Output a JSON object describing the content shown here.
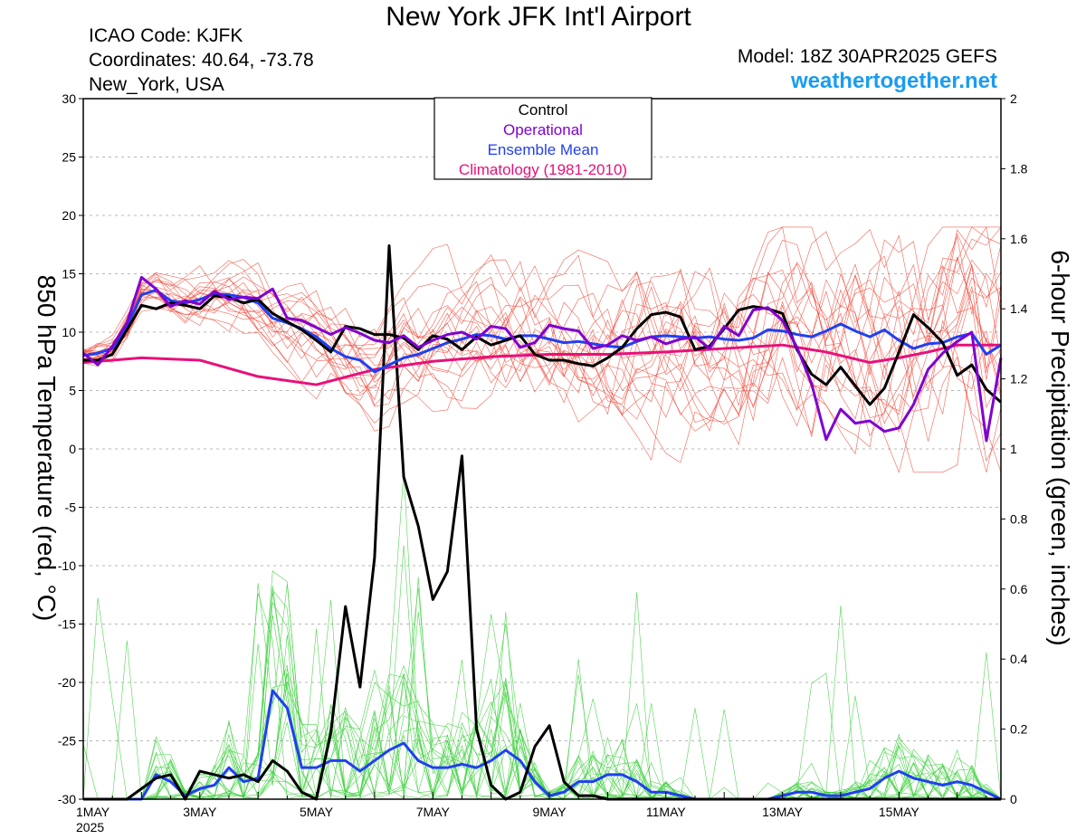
{
  "header": {
    "title": "New York JFK Int'l Airport",
    "icao": "ICAO Code: KJFK",
    "coordinates": "Coordinates: 40.64, -73.78",
    "location": "New_York, USA",
    "model": "Model: 18Z 30APR2025 GEFS",
    "site": "weathertogether.net"
  },
  "chart_data": {
    "type": "line",
    "ylabel_left": "850 hPa Temperature (red, °C)",
    "ylabel_right": "6-hour Precipitation (green, inches)",
    "xaxis": {
      "range_days": [
        0,
        15.75
      ],
      "ticks": [
        {
          "day": 0,
          "label": "1MAY",
          "sub": "2025"
        },
        {
          "day": 2,
          "label": "3MAY"
        },
        {
          "day": 4,
          "label": "5MAY"
        },
        {
          "day": 6,
          "label": "7MAY"
        },
        {
          "day": 8,
          "label": "9MAY"
        },
        {
          "day": 10,
          "label": "11MAY"
        },
        {
          "day": 12,
          "label": "13MAY"
        },
        {
          "day": 14,
          "label": "15MAY"
        }
      ]
    },
    "yaxis_left": {
      "range": [
        -30,
        30
      ],
      "ticks": [
        -30,
        -25,
        -20,
        -15,
        -10,
        -5,
        0,
        5,
        10,
        15,
        20,
        25,
        30
      ],
      "grid": true
    },
    "yaxis_right": {
      "range": [
        0,
        2
      ],
      "ticks": [
        "0",
        "0.2",
        "0.4",
        "0.6",
        "0.8",
        "1",
        "1.2",
        "1.4",
        "1.6",
        "1.8",
        "2"
      ]
    },
    "legend": {
      "placement": "top-center",
      "entries": [
        {
          "label": "Control",
          "color": "#000000"
        },
        {
          "label": "Operational",
          "color": "#8000d0"
        },
        {
          "label": "Ensemble Mean",
          "color": "#2040f0"
        },
        {
          "label": "Climatology (1981-2010)",
          "color": "#e8107a"
        }
      ]
    },
    "colors": {
      "temp_members": "#f04838",
      "precip_members": "#40d040",
      "control": "#000000",
      "operational": "#8000d0",
      "ensemble_mean": "#2040f0",
      "climatology": "#e8107a"
    },
    "series": {
      "climatology_temp": {
        "x": [
          0,
          1,
          2,
          3,
          4,
          5,
          6,
          7,
          8,
          9,
          10,
          11,
          12,
          12.75,
          13.5,
          14,
          14.5,
          15,
          15.75
        ],
        "y": [
          7.4,
          7.8,
          7.6,
          6.2,
          5.5,
          6.8,
          7.5,
          7.9,
          8.1,
          8.1,
          8.3,
          8.6,
          8.9,
          8.3,
          7.4,
          7.8,
          8.3,
          8.9,
          8.9
        ]
      },
      "ensemble_mean_temp": {
        "x": [
          0,
          0.25,
          0.5,
          0.75,
          1,
          1.25,
          1.5,
          1.75,
          2,
          2.25,
          2.5,
          2.75,
          3,
          3.25,
          3.5,
          3.75,
          4,
          4.25,
          4.5,
          4.75,
          5,
          5.25,
          5.5,
          5.75,
          6,
          6.25,
          6.5,
          6.75,
          7,
          7.25,
          7.5,
          7.75,
          8,
          8.25,
          8.5,
          8.75,
          9,
          9.25,
          9.5,
          9.75,
          10,
          10.25,
          10.5,
          10.75,
          11,
          11.25,
          11.5,
          11.75,
          12,
          12.25,
          12.5,
          12.75,
          13,
          13.25,
          13.5,
          13.75,
          14,
          14.25,
          14.5,
          14.75,
          15,
          15.25,
          15.5,
          15.75
        ],
        "y": [
          8,
          8.2,
          8.6,
          10.5,
          13.2,
          13.6,
          12.7,
          12.5,
          12.8,
          13.3,
          13.2,
          13,
          12.5,
          11.2,
          10.8,
          10.3,
          9.6,
          8.6,
          7.9,
          7.6,
          6.6,
          7.2,
          7.8,
          8.1,
          8.6,
          9.1,
          9.4,
          9.8,
          9.7,
          9.4,
          9.7,
          9.7,
          9.4,
          9.1,
          9.2,
          9.0,
          8.8,
          8.7,
          9.2,
          9.6,
          9.7,
          9.6,
          9.5,
          9.6,
          9.4,
          9.3,
          9.5,
          10.2,
          10.1,
          9.8,
          9.6,
          10.1,
          10.7,
          10.1,
          9.6,
          10.2,
          9.3,
          8.6,
          9.0,
          9.1,
          9.6,
          9.9,
          8.1,
          8.9
        ]
      },
      "control_temp": {
        "x": [
          0,
          0.25,
          0.5,
          0.75,
          1,
          1.25,
          1.5,
          1.75,
          2,
          2.25,
          2.5,
          2.75,
          3,
          3.25,
          3.5,
          3.75,
          4,
          4.25,
          4.5,
          4.75,
          5,
          5.25,
          5.5,
          5.75,
          6,
          6.25,
          6.5,
          6.75,
          7,
          7.25,
          7.5,
          7.75,
          8,
          8.25,
          8.5,
          8.75,
          9,
          9.25,
          9.5,
          9.75,
          10,
          10.25,
          10.5,
          10.75,
          11,
          11.25,
          11.5,
          11.75,
          12,
          12.25,
          12.5,
          12.75,
          13,
          13.25,
          13.5,
          13.75,
          14,
          14.25,
          14.5,
          14.75,
          15,
          15.25,
          15.5,
          15.75
        ],
        "y": [
          7.6,
          7.6,
          8.1,
          10.2,
          12.3,
          12.0,
          12.5,
          12.3,
          12.0,
          13.1,
          13.0,
          12.5,
          12.8,
          11.6,
          10.9,
          10.2,
          9.3,
          8.3,
          10.5,
          10.3,
          9.8,
          9.8,
          9.5,
          8.5,
          9.7,
          9.4,
          8.5,
          9.6,
          8.9,
          9.3,
          9.7,
          8.1,
          7.6,
          7.6,
          7.3,
          7.1,
          7.8,
          8.7,
          10.3,
          11.5,
          11.7,
          11.3,
          8.5,
          8.8,
          10.3,
          11.9,
          12.2,
          12.0,
          11.6,
          8.5,
          6.4,
          5.5,
          7.0,
          5.4,
          3.8,
          5.2,
          8.3,
          11.5,
          10.4,
          9.1,
          6.3,
          7.2,
          5.1,
          4.0
        ]
      },
      "operational_temp": {
        "x": [
          0,
          0.25,
          0.5,
          0.75,
          1,
          1.25,
          1.5,
          1.75,
          2,
          2.25,
          2.5,
          2.75,
          3,
          3.25,
          3.5,
          3.75,
          4,
          4.25,
          4.5,
          4.75,
          5,
          5.25,
          5.5,
          5.75,
          6,
          6.25,
          6.5,
          6.75,
          7,
          7.25,
          7.5,
          7.75,
          8,
          8.25,
          8.5,
          8.75,
          9,
          9.25,
          9.5,
          9.75,
          10,
          10.25,
          10.5,
          10.75,
          11,
          11.25,
          11.5,
          11.75,
          12,
          12.25,
          12.5,
          12.75,
          13,
          13.25,
          13.5,
          13.75,
          14,
          14.25,
          14.5,
          14.75,
          15,
          15.25,
          15.5,
          15.75
        ],
        "y": [
          8.2,
          7.2,
          8.8,
          10.8,
          14.7,
          13.7,
          12.2,
          12.7,
          12.4,
          13.5,
          12.8,
          13.0,
          12.9,
          13.7,
          11.2,
          11.0,
          10.4,
          9.8,
          10.4,
          9.9,
          9.3,
          9.1,
          9.7,
          8.7,
          9.3,
          9.8,
          10.0,
          9.4,
          10.5,
          10.3,
          8.7,
          9.1,
          10.6,
          10.3,
          10.1,
          8.6,
          8.9,
          9.7,
          9.3,
          9.6,
          9.0,
          9.4,
          9.6,
          8.6,
          10.5,
          9.7,
          11.9,
          12.1,
          11.0,
          8.7,
          5.6,
          0.8,
          3.4,
          2.2,
          2.4,
          1.5,
          1.8,
          3.8,
          6.8,
          8.2,
          9.2,
          10.0,
          0.7,
          7.8
        ]
      },
      "ensemble_mean_precip": {
        "x": [
          0,
          0.25,
          0.5,
          0.75,
          1,
          1.25,
          1.5,
          1.75,
          2,
          2.25,
          2.5,
          2.75,
          3,
          3.25,
          3.5,
          3.75,
          4,
          4.25,
          4.5,
          4.75,
          5,
          5.25,
          5.5,
          5.75,
          6,
          6.25,
          6.5,
          6.75,
          7,
          7.25,
          7.5,
          7.75,
          8,
          8.25,
          8.5,
          8.75,
          9,
          9.25,
          9.5,
          9.75,
          10,
          10.25,
          10.5,
          10.75,
          11,
          11.25,
          11.5,
          11.75,
          12,
          12.25,
          12.5,
          12.75,
          13,
          13.25,
          13.5,
          13.75,
          14,
          14.25,
          14.5,
          14.75,
          15,
          15.25,
          15.5,
          15.75
        ],
        "y": [
          0,
          0,
          0,
          0,
          0,
          0.07,
          0.05,
          0.01,
          0.03,
          0.04,
          0.09,
          0.05,
          0.06,
          0.31,
          0.26,
          0.09,
          0.09,
          0.11,
          0.11,
          0.08,
          0.11,
          0.14,
          0.16,
          0.11,
          0.09,
          0.09,
          0.1,
          0.09,
          0.11,
          0.14,
          0.11,
          0.05,
          0.01,
          0.02,
          0.05,
          0.05,
          0.07,
          0.07,
          0.05,
          0.02,
          0.02,
          0.01,
          0,
          0,
          0,
          0,
          0,
          0,
          0.01,
          0.02,
          0.02,
          0.01,
          0.01,
          0.02,
          0.03,
          0.06,
          0.08,
          0.06,
          0.05,
          0.04,
          0.05,
          0.04,
          0.02,
          0
        ]
      },
      "control_precip": {
        "x": [
          0,
          0.25,
          0.5,
          0.75,
          1,
          1.25,
          1.5,
          1.75,
          2,
          2.25,
          2.5,
          2.75,
          3,
          3.25,
          3.5,
          3.75,
          4,
          4.25,
          4.5,
          4.75,
          5,
          5.25,
          5.5,
          5.75,
          6,
          6.25,
          6.5,
          6.75,
          7,
          7.25,
          7.5,
          7.75,
          8,
          8.25,
          8.5,
          8.75,
          9,
          9.25,
          9.5,
          9.75,
          10,
          10.25,
          10.5,
          10.75,
          11,
          11.25,
          11.5,
          11.75,
          12,
          12.25,
          12.5,
          12.75,
          13,
          13.25,
          13.5,
          13.75,
          14,
          14.25,
          14.5,
          14.75,
          15,
          15.25,
          15.5,
          15.75
        ],
        "y": [
          0,
          0,
          0,
          0,
          0.03,
          0.06,
          0.07,
          0.0,
          0.08,
          0.07,
          0.06,
          0.07,
          0.05,
          0.11,
          0.08,
          0.02,
          0.0,
          0.19,
          0.55,
          0.32,
          0.69,
          1.58,
          0.92,
          0.78,
          0.57,
          0.65,
          0.98,
          0.2,
          0.04,
          0.0,
          0.02,
          0.15,
          0.21,
          0.05,
          0.01,
          0.01,
          0.0,
          0,
          0,
          0,
          0,
          0,
          0,
          0,
          0,
          0,
          0,
          0,
          0,
          0,
          0,
          0,
          0,
          0,
          0,
          0,
          0,
          0,
          0,
          0,
          0,
          0,
          0,
          0
        ]
      }
    }
  }
}
